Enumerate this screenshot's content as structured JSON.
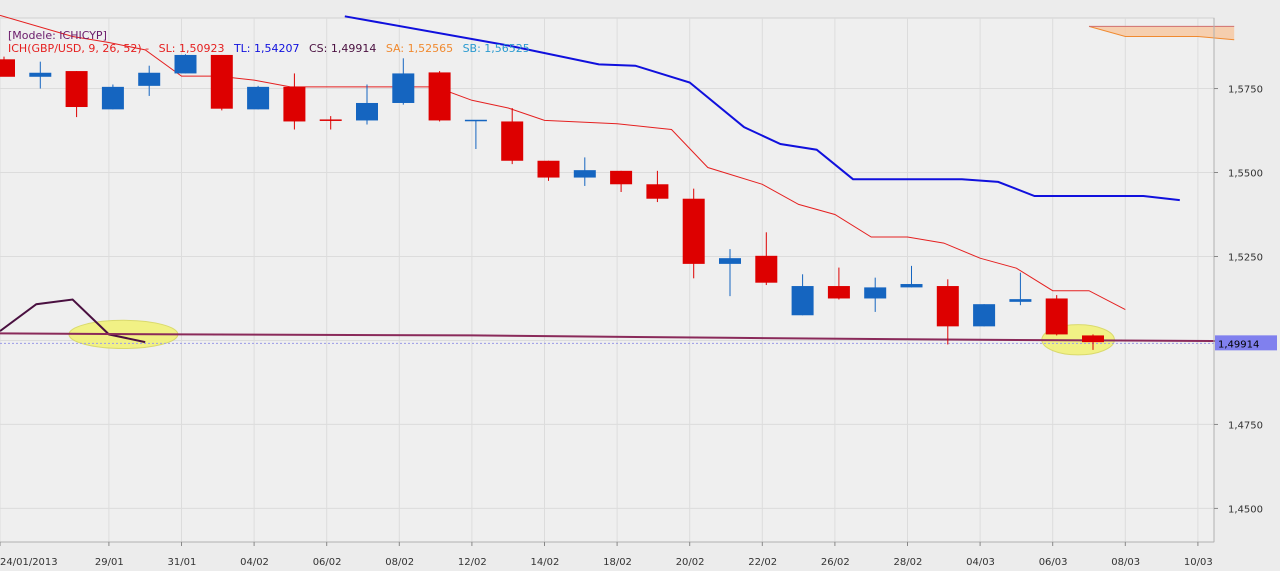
{
  "legend": {
    "model_line": "[Modele: ICHICYP]",
    "ich_label": "ICH(GBP/USD, 9, 26, 52) -",
    "sl": "SL: 1,50923",
    "tl": "TL: 1,54207",
    "cs": "CS: 1,49914",
    "sa": "SA: 1,52565",
    "sb": "SB: 1,56525"
  },
  "colors": {
    "bull": "#1565c0",
    "bear": "#dd0000",
    "tenkan": "#e52020",
    "kijun": "#1010dd",
    "chikou": "#4a1040",
    "cloud": "#f7c79f",
    "price_tag_bg": "#8080ee",
    "highlight": "#f2f27a"
  },
  "chart_data": {
    "type": "candlestick",
    "y_axis": {
      "min": 1.44,
      "max": 1.596,
      "ticks": [
        "1,4500",
        "1,4750",
        "1,5000",
        "1,5250",
        "1,5500",
        "1,5750"
      ],
      "tick_values": [
        1.45,
        1.475,
        1.5,
        1.525,
        1.55,
        1.575
      ],
      "side": "right",
      "grid": true
    },
    "x_axis": {
      "tick_labels": [
        "24/01/2013",
        "29/01",
        "31/01",
        "04/02",
        "06/02",
        "08/02",
        "12/02",
        "14/02",
        "18/02",
        "20/02",
        "22/02",
        "26/02",
        "28/02",
        "04/03",
        "06/03",
        "08/03",
        "10/03"
      ],
      "tick_index": [
        0,
        3,
        5,
        7,
        9,
        11,
        13,
        15,
        17,
        19,
        21,
        23,
        25,
        27,
        29,
        31,
        33
      ]
    },
    "current_price": "1,49914",
    "current_price_value": 1.49914,
    "candles": [
      {
        "i": 0,
        "o": 1.5837,
        "h": 1.5845,
        "l": 1.5795,
        "c": 1.5785
      },
      {
        "i": 1,
        "o": 1.5785,
        "h": 1.583,
        "l": 1.575,
        "c": 1.5797
      },
      {
        "i": 2,
        "o": 1.5802,
        "h": 1.5802,
        "l": 1.5665,
        "c": 1.5695
      },
      {
        "i": 3,
        "o": 1.5688,
        "h": 1.5762,
        "l": 1.5688,
        "c": 1.5755
      },
      {
        "i": 4,
        "o": 1.5758,
        "h": 1.5818,
        "l": 1.5728,
        "c": 1.5797
      },
      {
        "i": 5,
        "o": 1.5795,
        "h": 1.5852,
        "l": 1.5795,
        "c": 1.585
      },
      {
        "i": 6,
        "o": 1.585,
        "h": 1.585,
        "l": 1.5685,
        "c": 1.569
      },
      {
        "i": 7,
        "o": 1.5688,
        "h": 1.5758,
        "l": 1.5688,
        "c": 1.5755
      },
      {
        "i": 8,
        "o": 1.5755,
        "h": 1.5795,
        "l": 1.5628,
        "c": 1.5652
      },
      {
        "i": 9,
        "o": 1.5658,
        "h": 1.5668,
        "l": 1.5628,
        "c": 1.5655
      },
      {
        "i": 10,
        "o": 1.5655,
        "h": 1.5762,
        "l": 1.5643,
        "c": 1.5707
      },
      {
        "i": 11,
        "o": 1.5707,
        "h": 1.584,
        "l": 1.5702,
        "c": 1.5795
      },
      {
        "i": 12,
        "o": 1.5798,
        "h": 1.5802,
        "l": 1.5652,
        "c": 1.5655
      },
      {
        "i": 13,
        "o": 1.5655,
        "h": 1.5655,
        "l": 1.557,
        "c": 1.5657
      },
      {
        "i": 14,
        "o": 1.5652,
        "h": 1.5692,
        "l": 1.5525,
        "c": 1.5535
      },
      {
        "i": 15,
        "o": 1.5535,
        "h": 1.5535,
        "l": 1.5475,
        "c": 1.5485
      },
      {
        "i": 16,
        "o": 1.5485,
        "h": 1.5545,
        "l": 1.546,
        "c": 1.5507
      },
      {
        "i": 17,
        "o": 1.5505,
        "h": 1.5505,
        "l": 1.5442,
        "c": 1.5465
      },
      {
        "i": 18,
        "o": 1.5465,
        "h": 1.5505,
        "l": 1.5412,
        "c": 1.5422
      },
      {
        "i": 19,
        "o": 1.5422,
        "h": 1.5452,
        "l": 1.5185,
        "c": 1.5228
      },
      {
        "i": 20,
        "o": 1.5228,
        "h": 1.5272,
        "l": 1.5132,
        "c": 1.5245
      },
      {
        "i": 21,
        "o": 1.5252,
        "h": 1.5322,
        "l": 1.5165,
        "c": 1.5172
      },
      {
        "i": 22,
        "o": 1.5075,
        "h": 1.5197,
        "l": 1.5075,
        "c": 1.5162
      },
      {
        "i": 23,
        "o": 1.5162,
        "h": 1.5217,
        "l": 1.5122,
        "c": 1.5125
      },
      {
        "i": 24,
        "o": 1.5125,
        "h": 1.5187,
        "l": 1.5085,
        "c": 1.5158
      },
      {
        "i": 25,
        "o": 1.5158,
        "h": 1.5222,
        "l": 1.5158,
        "c": 1.5168
      },
      {
        "i": 26,
        "o": 1.5162,
        "h": 1.5182,
        "l": 1.4988,
        "c": 1.5042
      },
      {
        "i": 27,
        "o": 1.5042,
        "h": 1.5108,
        "l": 1.5042,
        "c": 1.5108
      },
      {
        "i": 28,
        "o": 1.5115,
        "h": 1.5202,
        "l": 1.5105,
        "c": 1.5123
      },
      {
        "i": 29,
        "o": 1.5125,
        "h": 1.5135,
        "l": 1.5015,
        "c": 1.5018
      },
      {
        "i": 30,
        "o": 1.5015,
        "h": 1.5018,
        "l": 1.4972,
        "c": 1.4995
      }
    ],
    "series": [
      {
        "name": "TL",
        "points": [
          [
            9.5,
            1.5965
          ],
          [
            14,
            1.5878
          ],
          [
            16.5,
            1.5822
          ],
          [
            17.5,
            1.5818
          ],
          [
            19,
            1.5768
          ],
          [
            20.5,
            1.5635
          ],
          [
            21.5,
            1.5585
          ],
          [
            22.5,
            1.5568
          ],
          [
            23.5,
            1.548
          ],
          [
            24.5,
            1.548
          ],
          [
            26.5,
            1.548
          ],
          [
            27.5,
            1.5472
          ],
          [
            28.5,
            1.543
          ],
          [
            31.5,
            1.543
          ],
          [
            32.5,
            1.5418
          ]
        ]
      },
      {
        "name": "SL",
        "points": [
          [
            0,
            1.5968
          ],
          [
            2,
            1.5905
          ],
          [
            3,
            1.5887
          ],
          [
            4,
            1.5865
          ],
          [
            5,
            1.5787
          ],
          [
            6,
            1.5787
          ],
          [
            7,
            1.5775
          ],
          [
            8,
            1.5755
          ],
          [
            11,
            1.5755
          ],
          [
            12,
            1.5755
          ],
          [
            13,
            1.5715
          ],
          [
            14,
            1.5692
          ],
          [
            15,
            1.5655
          ],
          [
            17,
            1.5645
          ],
          [
            18.5,
            1.5628
          ],
          [
            19.5,
            1.5515
          ],
          [
            21,
            1.5465
          ],
          [
            22,
            1.5405
          ],
          [
            23,
            1.5375
          ],
          [
            24,
            1.5308
          ],
          [
            25,
            1.5308
          ],
          [
            26,
            1.529
          ],
          [
            27,
            1.5245
          ],
          [
            28,
            1.5215
          ],
          [
            29,
            1.5148
          ],
          [
            30,
            1.5148
          ],
          [
            31,
            1.5092
          ]
        ]
      },
      {
        "name": "CS",
        "points": [
          [
            0,
            1.5028
          ],
          [
            1,
            1.5108
          ],
          [
            2,
            1.5122
          ],
          [
            3,
            1.5018
          ],
          [
            4,
            1.4995
          ]
        ]
      },
      {
        "name": "SA",
        "points": [
          [
            30,
            1.5935
          ],
          [
            31,
            1.5905
          ],
          [
            32,
            1.5905
          ],
          [
            33,
            1.5905
          ],
          [
            34,
            1.5895
          ]
        ]
      },
      {
        "name": "SB",
        "points": [
          [
            30,
            1.5935
          ],
          [
            34,
            1.5935
          ]
        ]
      },
      {
        "name": "Support",
        "points": [
          [
            -1,
            1.5022
          ],
          [
            5,
            1.5018
          ],
          [
            13,
            1.5015
          ],
          [
            20,
            1.5008
          ],
          [
            27,
            1.5002
          ],
          [
            34,
            1.4998
          ],
          [
            35,
            1.4995
          ]
        ]
      }
    ],
    "highlights": [
      {
        "cx": 3.4,
        "cy": 1.5018,
        "rx": 1.5,
        "ry": 0.0042
      },
      {
        "cx": 29.7,
        "cy": 1.5002,
        "rx": 1.0,
        "ry": 0.0045
      }
    ]
  }
}
